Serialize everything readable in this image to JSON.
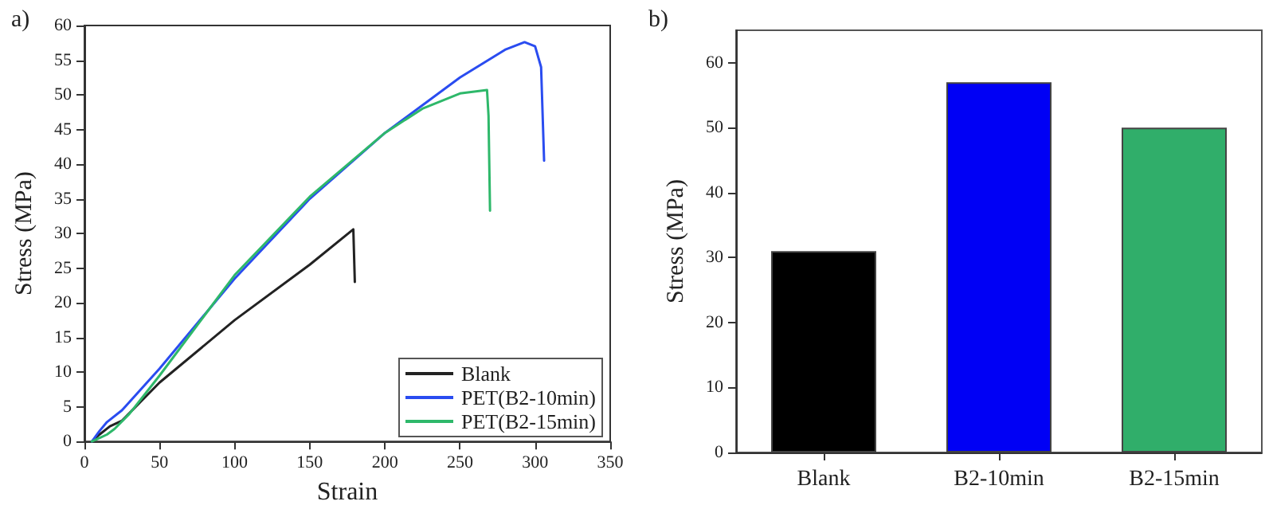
{
  "chart_data": [
    {
      "type": "line",
      "title": "a)",
      "xlabel": "Strain",
      "ylabel": "Stress (MPa)",
      "xlim": [
        0,
        350
      ],
      "xticks": [
        0,
        50,
        100,
        150,
        200,
        250,
        300,
        350
      ],
      "ylim": [
        0,
        60
      ],
      "yticks": [
        0,
        5,
        10,
        15,
        20,
        25,
        30,
        35,
        40,
        45,
        50,
        55,
        60
      ],
      "legend": "bottom right",
      "marker": "none",
      "grid": false,
      "series": [
        {
          "name": "Blank",
          "color": "#222222",
          "x": [
            5,
            10,
            17,
            25,
            50,
            100,
            150,
            179,
            180
          ],
          "values": [
            0,
            1,
            2.2,
            3,
            8.5,
            17.5,
            25.5,
            30.6,
            23
          ]
        },
        {
          "name": "PET(B2-10min)",
          "color": "#2a4cf0",
          "x": [
            5,
            10,
            15,
            25,
            50,
            100,
            150,
            200,
            250,
            280,
            293,
            300,
            304,
            306
          ],
          "values": [
            0,
            1.5,
            2.8,
            4.5,
            10.5,
            23.5,
            35,
            44.5,
            52.5,
            56.5,
            57.6,
            57,
            54,
            40.5
          ]
        },
        {
          "name": "PET(B2-15min)",
          "color": "#2eb86a",
          "x": [
            5,
            10,
            15,
            20,
            30,
            50,
            100,
            150,
            200,
            225,
            250,
            268,
            269,
            270
          ],
          "values": [
            0,
            0.5,
            1,
            1.8,
            4,
            9.5,
            24,
            35.3,
            44.5,
            48,
            50.2,
            50.7,
            47,
            33.3
          ]
        }
      ]
    },
    {
      "type": "bar",
      "title": "b)",
      "ylabel": "Stress (MPa)",
      "categories": [
        "Blank",
        "B2-10min",
        "B2-15min"
      ],
      "values": [
        31,
        57,
        50
      ],
      "colors": [
        "#000000",
        "#0000f5",
        "#30ae6a"
      ],
      "ylim": [
        0,
        65
      ],
      "yticks": [
        0,
        10,
        20,
        30,
        40,
        50,
        60
      ],
      "grid": false
    }
  ]
}
